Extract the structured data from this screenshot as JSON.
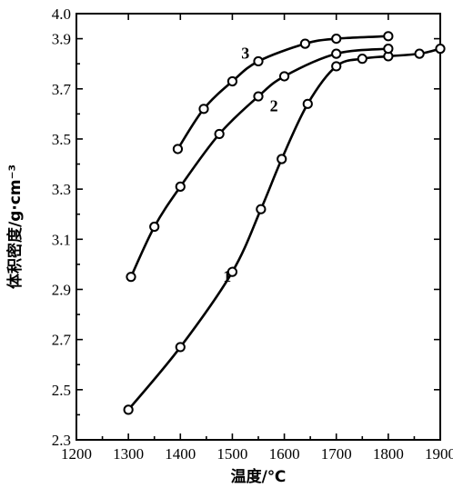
{
  "chart_data": {
    "type": "line",
    "xlabel": "温度/℃",
    "ylabel": "体积密度/g·cm⁻³",
    "xlim": [
      1200,
      1900
    ],
    "ylim": [
      2.3,
      4.0
    ],
    "x_ticks": [
      1200,
      1300,
      1400,
      1500,
      1600,
      1700,
      1800,
      1900
    ],
    "y_ticks": [
      2.3,
      2.5,
      2.7,
      2.9,
      3.1,
      3.3,
      3.5,
      3.7,
      3.9,
      4.0
    ],
    "y_tick_labels": [
      "2.3",
      "2.5",
      "2.7",
      "2.9",
      "3.1",
      "3.3",
      "3.5",
      "3.7",
      "3.9",
      "4.0"
    ],
    "grid": false,
    "series": [
      {
        "name": "1",
        "label_at": [
          1490,
          2.93
        ],
        "points": [
          [
            1300,
            2.42
          ],
          [
            1400,
            2.67
          ],
          [
            1500,
            2.97
          ],
          [
            1555,
            3.22
          ],
          [
            1595,
            3.42
          ],
          [
            1645,
            3.64
          ],
          [
            1700,
            3.79
          ],
          [
            1750,
            3.82
          ],
          [
            1800,
            3.83
          ],
          [
            1860,
            3.84
          ],
          [
            1900,
            3.86
          ]
        ]
      },
      {
        "name": "2",
        "label_at": [
          1580,
          3.61
        ],
        "points": [
          [
            1305,
            2.95
          ],
          [
            1350,
            3.15
          ],
          [
            1400,
            3.31
          ],
          [
            1475,
            3.52
          ],
          [
            1550,
            3.67
          ],
          [
            1600,
            3.75
          ],
          [
            1700,
            3.84
          ],
          [
            1800,
            3.86
          ]
        ]
      },
      {
        "name": "3",
        "label_at": [
          1525,
          3.82
        ],
        "points": [
          [
            1395,
            3.46
          ],
          [
            1445,
            3.62
          ],
          [
            1500,
            3.73
          ],
          [
            1550,
            3.81
          ],
          [
            1640,
            3.88
          ],
          [
            1700,
            3.9
          ],
          [
            1800,
            3.91
          ]
        ]
      }
    ]
  }
}
